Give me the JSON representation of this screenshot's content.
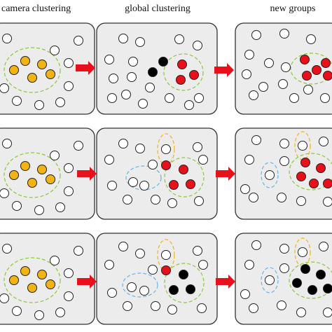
{
  "headers": [
    "camera clustering",
    "global clustering",
    "new groups"
  ]
}
